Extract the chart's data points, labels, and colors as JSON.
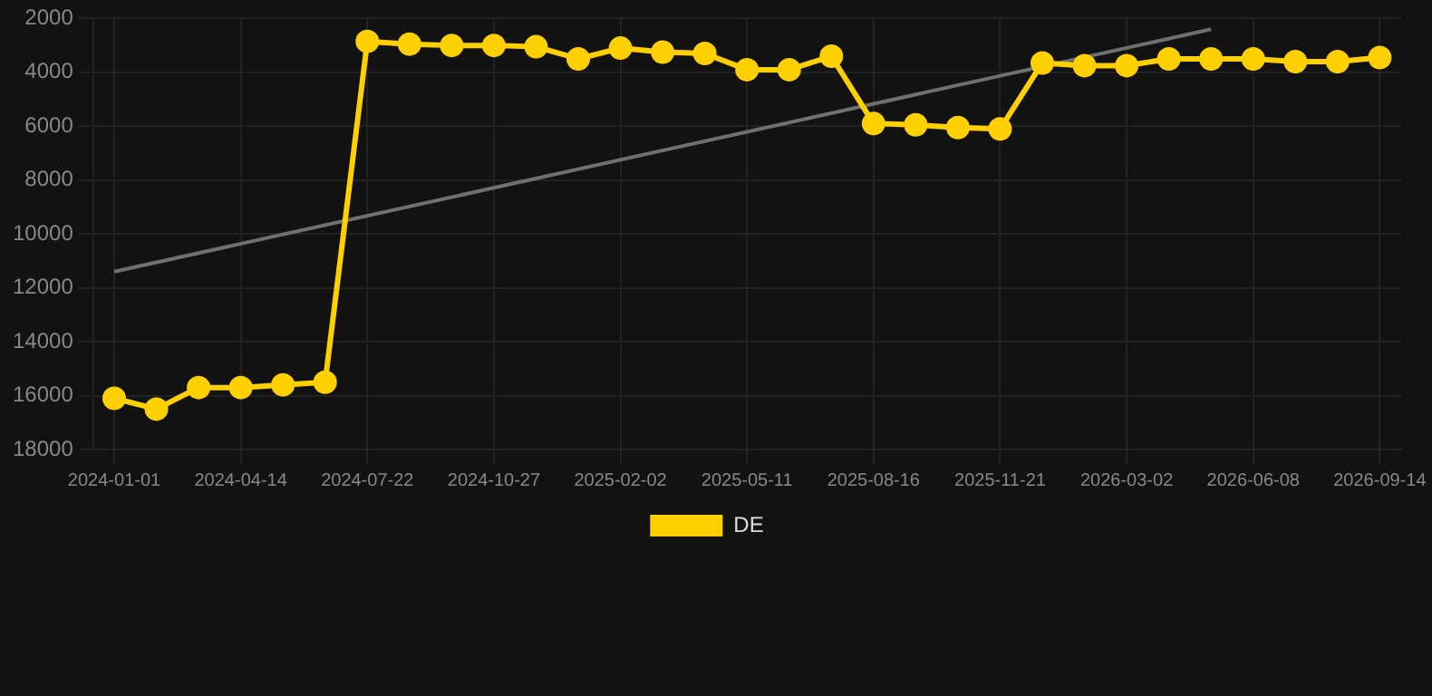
{
  "chart_data": {
    "type": "line",
    "categories": [
      "2024-01-01",
      null,
      null,
      "2024-04-14",
      null,
      null,
      "2024-07-22",
      null,
      null,
      "2024-10-27",
      null,
      null,
      "2025-02-02",
      null,
      null,
      "2025-05-11",
      null,
      null,
      "2025-08-16",
      null,
      null,
      "2025-11-21",
      null,
      null,
      "2026-03-02",
      null,
      null,
      "2026-06-08",
      null,
      null,
      "2026-09-14"
    ],
    "series": [
      {
        "name": "DE",
        "color": "#ffd000",
        "marker": "circle",
        "values": [
          16100,
          16500,
          15700,
          15700,
          15600,
          15500,
          2850,
          2950,
          3000,
          3000,
          3050,
          3500,
          3100,
          3250,
          3300,
          3900,
          3900,
          3400,
          5900,
          5950,
          6050,
          6100,
          3650,
          3750,
          3750,
          3500,
          3500,
          3500,
          3600,
          3600,
          3450
        ]
      },
      {
        "type": "line",
        "color": "#707070",
        "marker": "none",
        "values": [
          11400,
          null,
          null,
          null,
          null,
          null,
          null,
          null,
          null,
          null,
          null,
          null,
          null,
          null,
          null,
          null,
          null,
          null,
          null,
          null,
          null,
          null,
          null,
          null,
          null,
          null,
          2400,
          null,
          null,
          null,
          null
        ]
      }
    ],
    "ylim": [
      18000,
      2000
    ],
    "yticks": [
      2000,
      4000,
      6000,
      8000,
      10000,
      12000,
      14000,
      16000,
      18000
    ],
    "grid": true,
    "legend": "bottom",
    "line_style": "solid"
  }
}
